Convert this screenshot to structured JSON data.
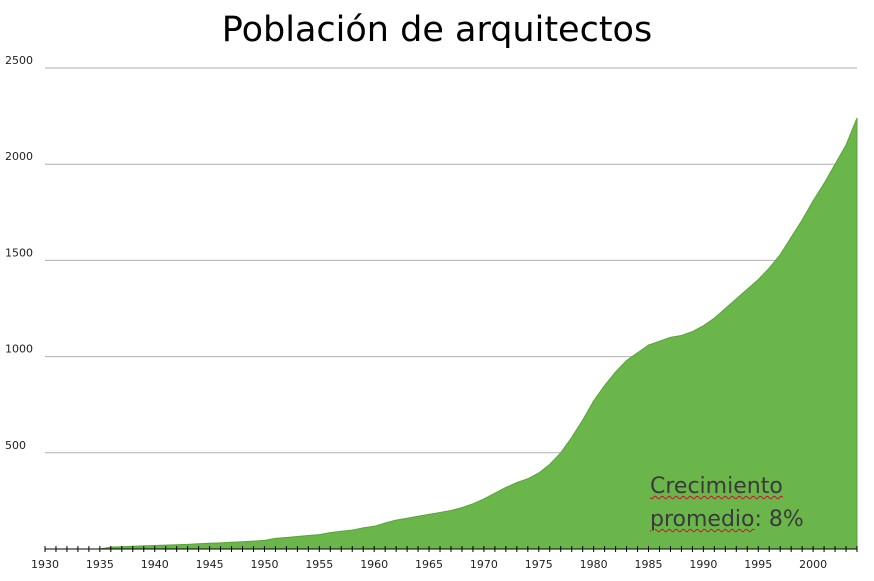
{
  "chart_data": {
    "type": "area",
    "title": "Población de arquitectos",
    "xlabel": "",
    "ylabel": "",
    "xlim": [
      1930,
      2004
    ],
    "ylim": [
      0,
      2500
    ],
    "grid": true,
    "fill_color": "#6ab64a",
    "grid_color": "#b0b0b0",
    "x_tick_labels": [
      "1930",
      "1935",
      "1940",
      "1945",
      "1950",
      "1955",
      "1960",
      "1965",
      "1970",
      "1975",
      "1980",
      "1985",
      "1990",
      "1995",
      "2000"
    ],
    "y_tick_labels": [
      "500",
      "1000",
      "1500",
      "2000",
      "2500"
    ],
    "annotation": {
      "line1": "Crecimiento",
      "line2_word": "promedio",
      "line2_rest": ": 8%"
    },
    "x": [
      1930,
      1931,
      1932,
      1933,
      1934,
      1935,
      1936,
      1937,
      1938,
      1939,
      1940,
      1941,
      1942,
      1943,
      1944,
      1945,
      1946,
      1947,
      1948,
      1949,
      1950,
      1951,
      1952,
      1953,
      1954,
      1955,
      1956,
      1957,
      1958,
      1959,
      1960,
      1961,
      1962,
      1963,
      1964,
      1965,
      1966,
      1967,
      1968,
      1969,
      1970,
      1971,
      1972,
      1973,
      1974,
      1975,
      1976,
      1977,
      1978,
      1979,
      1980,
      1981,
      1982,
      1983,
      1984,
      1985,
      1986,
      1987,
      1988,
      1989,
      1990,
      1991,
      1992,
      1993,
      1994,
      1995,
      1996,
      1997,
      1998,
      1999,
      2000,
      2001,
      2002,
      2003,
      2004
    ],
    "values": [
      0,
      0,
      0,
      0,
      0,
      0,
      10,
      12,
      14,
      16,
      18,
      20,
      22,
      24,
      27,
      30,
      32,
      35,
      38,
      41,
      45,
      55,
      60,
      65,
      70,
      75,
      85,
      92,
      98,
      110,
      118,
      135,
      150,
      160,
      170,
      180,
      190,
      200,
      215,
      235,
      260,
      290,
      320,
      345,
      365,
      395,
      440,
      500,
      580,
      670,
      770,
      850,
      920,
      980,
      1020,
      1060,
      1080,
      1100,
      1110,
      1130,
      1160,
      1200,
      1250,
      1300,
      1350,
      1400,
      1460,
      1530,
      1620,
      1710,
      1810,
      1900,
      2000,
      2100,
      2240
    ]
  }
}
